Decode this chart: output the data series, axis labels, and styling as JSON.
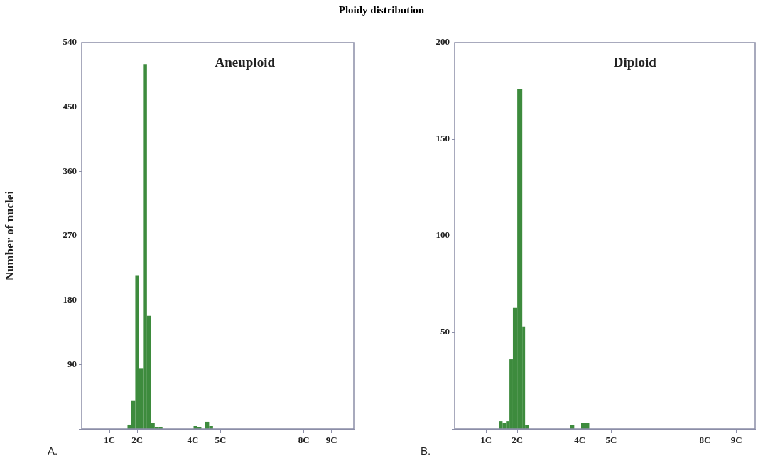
{
  "chart_data": [
    {
      "type": "histogram",
      "title": "Ploidy distribution",
      "subtitle": "Aneuploid",
      "ylabel": "Number of nuclei",
      "annotations": [
        "A."
      ],
      "color": "#3d8b3d",
      "bins": [
        1.65,
        1.79,
        1.93,
        2.07,
        2.21,
        2.35,
        2.49,
        2.63,
        2.77,
        2.91,
        3.05,
        3.19,
        3.33,
        3.47,
        3.61,
        3.75,
        3.89,
        4.03,
        4.17,
        4.31,
        4.45,
        4.59,
        4.73,
        4.87
      ],
      "values": [
        6,
        40,
        215,
        85,
        510,
        158,
        8,
        3,
        3,
        0,
        0,
        0,
        0,
        0,
        0,
        0,
        0,
        4,
        3,
        0,
        10,
        4,
        0
      ],
      "xlim": [
        0,
        9.8
      ],
      "xticks": [
        {
          "value": 1,
          "label": "1C"
        },
        {
          "value": 2,
          "label": "2C"
        },
        {
          "value": 4,
          "label": "4C"
        },
        {
          "value": 5,
          "label": "5C"
        },
        {
          "value": 8,
          "label": "8C"
        },
        {
          "value": 9,
          "label": "9C"
        }
      ],
      "ylim": [
        0,
        540
      ],
      "yticks": [
        {
          "value": 0,
          "label": null
        },
        90,
        180,
        270,
        360,
        450,
        540
      ]
    },
    {
      "type": "histogram",
      "subtitle": "Diploid",
      "annotations": [
        "B."
      ],
      "color": "#3d8b3d",
      "bins": [
        1.42,
        1.53,
        1.64,
        1.75,
        1.86,
        2.0,
        2.16,
        2.25,
        2.36,
        3.69,
        3.82,
        4.04,
        4.3
      ],
      "values": [
        4,
        3,
        4,
        36,
        63,
        176,
        53,
        2,
        0,
        2,
        0,
        3
      ],
      "xlim": [
        0,
        9.6
      ],
      "xticks": [
        {
          "value": 1,
          "label": "1C"
        },
        {
          "value": 2,
          "label": "2C"
        },
        {
          "value": 4,
          "label": "4C"
        },
        {
          "value": 5,
          "label": "5C"
        },
        {
          "value": 8,
          "label": "8C"
        },
        {
          "value": 9,
          "label": "9C"
        }
      ],
      "ylim": [
        0,
        200
      ],
      "yticks": [
        {
          "value": 0,
          "label": null
        },
        50,
        100,
        150,
        200
      ]
    }
  ]
}
